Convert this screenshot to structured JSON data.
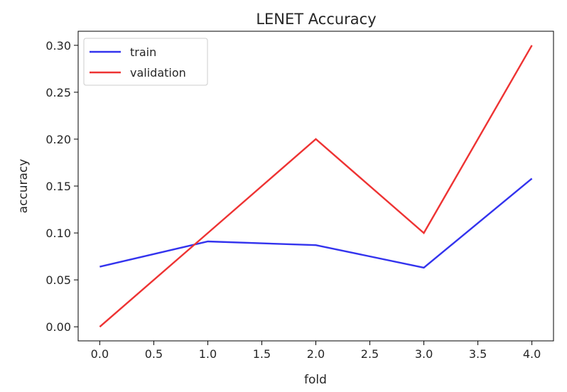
{
  "chart_data": {
    "type": "line",
    "title": "LENET Accuracy",
    "xlabel": "fold",
    "ylabel": "accuracy",
    "x": [
      0.0,
      1.0,
      2.0,
      3.0,
      4.0
    ],
    "xlim": [
      -0.2,
      4.2
    ],
    "ylim": [
      -0.015,
      0.315
    ],
    "xticks": [
      0.0,
      0.5,
      1.0,
      1.5,
      2.0,
      2.5,
      3.0,
      3.5,
      4.0
    ],
    "xtick_labels": [
      "0.0",
      "0.5",
      "1.0",
      "1.5",
      "2.0",
      "2.5",
      "3.0",
      "3.5",
      "4.0"
    ],
    "yticks": [
      0.0,
      0.05,
      0.1,
      0.15,
      0.2,
      0.25,
      0.3
    ],
    "ytick_labels": [
      "0.00",
      "0.05",
      "0.10",
      "0.15",
      "0.20",
      "0.25",
      "0.30"
    ],
    "grid": false,
    "legend_position": "top-left",
    "series": [
      {
        "name": "train",
        "color": "#3333ee",
        "values": [
          0.064,
          0.091,
          0.087,
          0.063,
          0.158
        ]
      },
      {
        "name": "validation",
        "color": "#ee3333",
        "values": [
          0.0,
          0.1,
          0.2,
          0.1,
          0.3
        ]
      }
    ]
  }
}
